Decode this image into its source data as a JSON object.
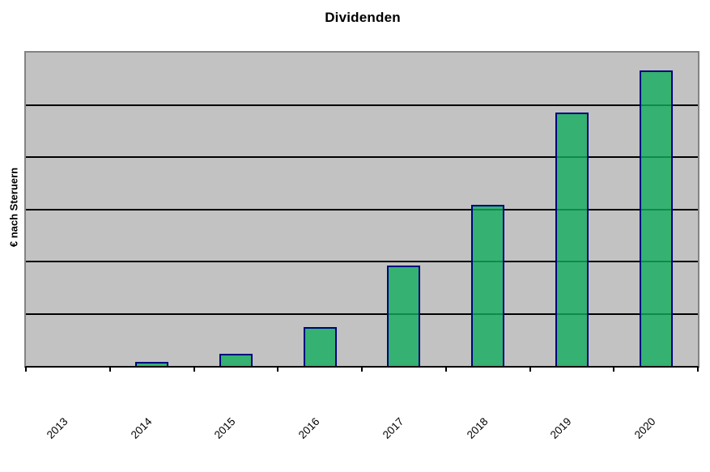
{
  "chart": {
    "title": "Dividenden",
    "y_axis_label": "€ nach Steruern",
    "colors": {
      "plot_background": "#C2C2C2",
      "plot_border": "#838383",
      "gridline": "#000000",
      "axis_line": "#000000",
      "bar_fill": "rgba(18, 172, 94, 0.8)",
      "bar_border": "#000080",
      "text": "#000000"
    }
  },
  "chart_data": {
    "type": "bar",
    "title": "Dividenden",
    "xlabel": "",
    "ylabel": "€ nach Steruern",
    "categories": [
      "2013",
      "2014",
      "2015",
      "2016",
      "2017",
      "2018",
      "2019",
      "2020"
    ],
    "values": [
      0,
      0.08,
      0.23,
      0.75,
      1.92,
      3.08,
      4.85,
      5.66
    ],
    "ylim": [
      0,
      6
    ],
    "y_gridline_count": 5,
    "y_tick_labels": "none visible",
    "value_scale_note": "y-axis shows no numeric tick labels; values estimated in gridline units (1 unit = 1 gridline interval, 6 intervals total)",
    "grid": "horizontal black gridlines on gray plot background",
    "legend": "none",
    "x_label_rotation_deg": -45
  }
}
